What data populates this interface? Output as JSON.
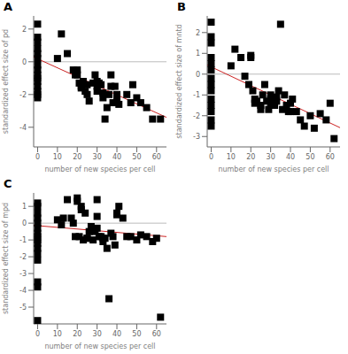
{
  "chart_data": [
    {
      "type": "scatter",
      "title": "A",
      "x_label": "number of new species per cell",
      "y_label": "standardized effect size of pd",
      "xlim": [
        -2,
        65
      ],
      "ylim": [
        -5.2,
        2.8
      ],
      "xticks": [
        0,
        10,
        20,
        30,
        40,
        50,
        60
      ],
      "yticks": [
        2,
        0,
        -2,
        -4
      ],
      "grid": false,
      "series": [
        {
          "type": "line",
          "color": "#bbbbbb",
          "x": [
            -2,
            65
          ],
          "values": [
            0,
            0
          ]
        },
        {
          "type": "line",
          "color": "#cc2222",
          "x": [
            -2,
            65
          ],
          "values": [
            0.29,
            -3.395
          ]
        },
        {
          "type": "scatter",
          "color": "#000000",
          "marker": "square",
          "x": [
            0,
            0,
            0,
            0,
            0,
            0,
            0,
            0,
            0,
            0,
            0,
            0,
            0,
            0,
            0,
            10,
            12,
            15,
            18,
            19,
            20,
            20,
            21,
            22,
            22,
            23,
            24,
            25,
            25,
            26,
            28,
            29,
            30,
            30,
            30,
            31,
            32,
            33,
            33,
            34,
            35,
            36,
            37,
            37,
            38,
            39,
            40,
            40,
            41,
            45,
            47,
            48,
            50,
            52,
            55,
            58,
            62
          ],
          "values": [
            2.3,
            1.5,
            1.2,
            0.8,
            0.5,
            0.2,
            -0.2,
            -0.5,
            -0.8,
            -1.0,
            -1.2,
            -1.5,
            -1.8,
            -2.0,
            -2.2,
            0.2,
            1.7,
            0.5,
            -0.5,
            -0.8,
            -0.5,
            -0.8,
            -1.3,
            -1.5,
            -1.6,
            -1.2,
            -1.8,
            -1.4,
            -2.0,
            -2.4,
            -1.3,
            -0.8,
            -1.2,
            -1.5,
            -1.8,
            -1.3,
            -1.4,
            -2.2,
            -1.9,
            -3.5,
            -2.8,
            -2.0,
            -0.8,
            -1.5,
            -2.5,
            -1.5,
            -2.0,
            -2.2,
            -2.6,
            -2.0,
            -2.5,
            -1.4,
            -2.2,
            -2.5,
            -2.8,
            -3.5,
            -3.5
          ]
        }
      ]
    },
    {
      "type": "scatter",
      "title": "B",
      "x_label": "number of new species per cell",
      "y_label": "standardized effect size of mntd",
      "xlim": [
        -2,
        65
      ],
      "ylim": [
        -3.5,
        2.8
      ],
      "xticks": [
        0,
        10,
        20,
        30,
        40,
        50,
        60
      ],
      "yticks": [
        2,
        1,
        0,
        -1,
        -2,
        -3
      ],
      "grid": false,
      "series": [
        {
          "type": "line",
          "color": "#bbbbbb",
          "x": [
            -2,
            65
          ],
          "values": [
            0,
            0
          ]
        },
        {
          "type": "line",
          "color": "#cc2222",
          "x": [
            -2,
            65
          ],
          "values": [
            0.44,
            -2.575
          ]
        },
        {
          "type": "scatter",
          "color": "#000000",
          "marker": "square",
          "x": [
            0,
            0,
            0,
            0,
            0,
            0,
            0,
            0,
            0,
            0,
            0,
            0,
            0,
            0,
            10,
            12,
            15,
            17,
            19,
            20,
            20,
            21,
            22,
            22,
            23,
            25,
            25,
            26,
            27,
            28,
            29,
            30,
            30,
            30,
            31,
            32,
            33,
            33,
            34,
            35,
            36,
            37,
            38,
            39,
            40,
            40,
            41,
            43,
            45,
            47,
            50,
            52,
            55,
            58,
            60,
            62
          ],
          "values": [
            2.5,
            1.8,
            1.5,
            0.8,
            0.5,
            0.2,
            -0.2,
            -0.5,
            -0.8,
            -1.2,
            -1.5,
            -1.8,
            -2.2,
            -2.5,
            0.4,
            1.2,
            0.8,
            -0.1,
            -0.5,
            0.9,
            0.8,
            -0.8,
            -1.2,
            -1.4,
            -1.3,
            -1.5,
            -1.7,
            -1.0,
            -0.5,
            -1.3,
            -1.7,
            -1.0,
            -1.2,
            -1.4,
            -1.2,
            -1.5,
            -1.1,
            -1.3,
            -0.8,
            2.4,
            -1.7,
            -1.0,
            -1.5,
            -1.8,
            -1.8,
            -1.4,
            -1.2,
            -1.8,
            -2.2,
            -2.5,
            -2.0,
            -2.6,
            -1.9,
            -2.2,
            -1.4,
            -3.1
          ]
        }
      ]
    },
    {
      "type": "scatter",
      "title": "C",
      "x_label": "number of new species per cell",
      "y_label": "standardized effect size of mpd",
      "xlim": [
        -2,
        65
      ],
      "ylim": [
        -6.0,
        1.8
      ],
      "xticks": [
        0,
        10,
        20,
        30,
        40,
        50,
        60
      ],
      "yticks": [
        1,
        0,
        -1,
        -2,
        -3,
        -4,
        -5
      ],
      "grid": false,
      "series": [
        {
          "type": "line",
          "color": "#bbbbbb",
          "x": [
            -2,
            65
          ],
          "values": [
            0,
            0
          ]
        },
        {
          "type": "line",
          "color": "#cc2222",
          "x": [
            -2,
            65
          ],
          "values": [
            -0.13,
            -0.8
          ]
        },
        {
          "type": "scatter",
          "color": "#000000",
          "marker": "square",
          "x": [
            0,
            0,
            0,
            0,
            0,
            0,
            0,
            0,
            0,
            0,
            0,
            0,
            0,
            0,
            0,
            0,
            10,
            12,
            13,
            15,
            17,
            18,
            19,
            20,
            20,
            21,
            22,
            22,
            23,
            24,
            25,
            25,
            26,
            27,
            28,
            29,
            30,
            30,
            30,
            31,
            32,
            33,
            33,
            34,
            35,
            36,
            37,
            38,
            39,
            40,
            40,
            41,
            43,
            45,
            47,
            50,
            52,
            55,
            58,
            60,
            62
          ],
          "values": [
            1.2,
            1.0,
            0.6,
            0.3,
            0.0,
            -0.3,
            -0.6,
            -0.8,
            -1.0,
            -1.2,
            -1.5,
            -1.8,
            -2.2,
            -3.5,
            -3.8,
            -5.8,
            0.2,
            -0.1,
            0.3,
            1.4,
            0.3,
            0.0,
            -0.8,
            1.5,
            1.3,
            -0.8,
            1.0,
            0.8,
            -1.0,
            0.6,
            -0.9,
            -0.9,
            -0.5,
            -0.2,
            -1.0,
            -0.5,
            0.4,
            1.4,
            -0.3,
            -0.8,
            -0.8,
            -1.1,
            -0.9,
            -0.9,
            -1.5,
            -4.5,
            -0.6,
            -0.8,
            -1.3,
            0.5,
            0.6,
            1.0,
            0.3,
            -0.8,
            -0.8,
            -1.0,
            -0.7,
            -0.8,
            -1.1,
            -0.9,
            -5.6
          ]
        }
      ]
    }
  ]
}
